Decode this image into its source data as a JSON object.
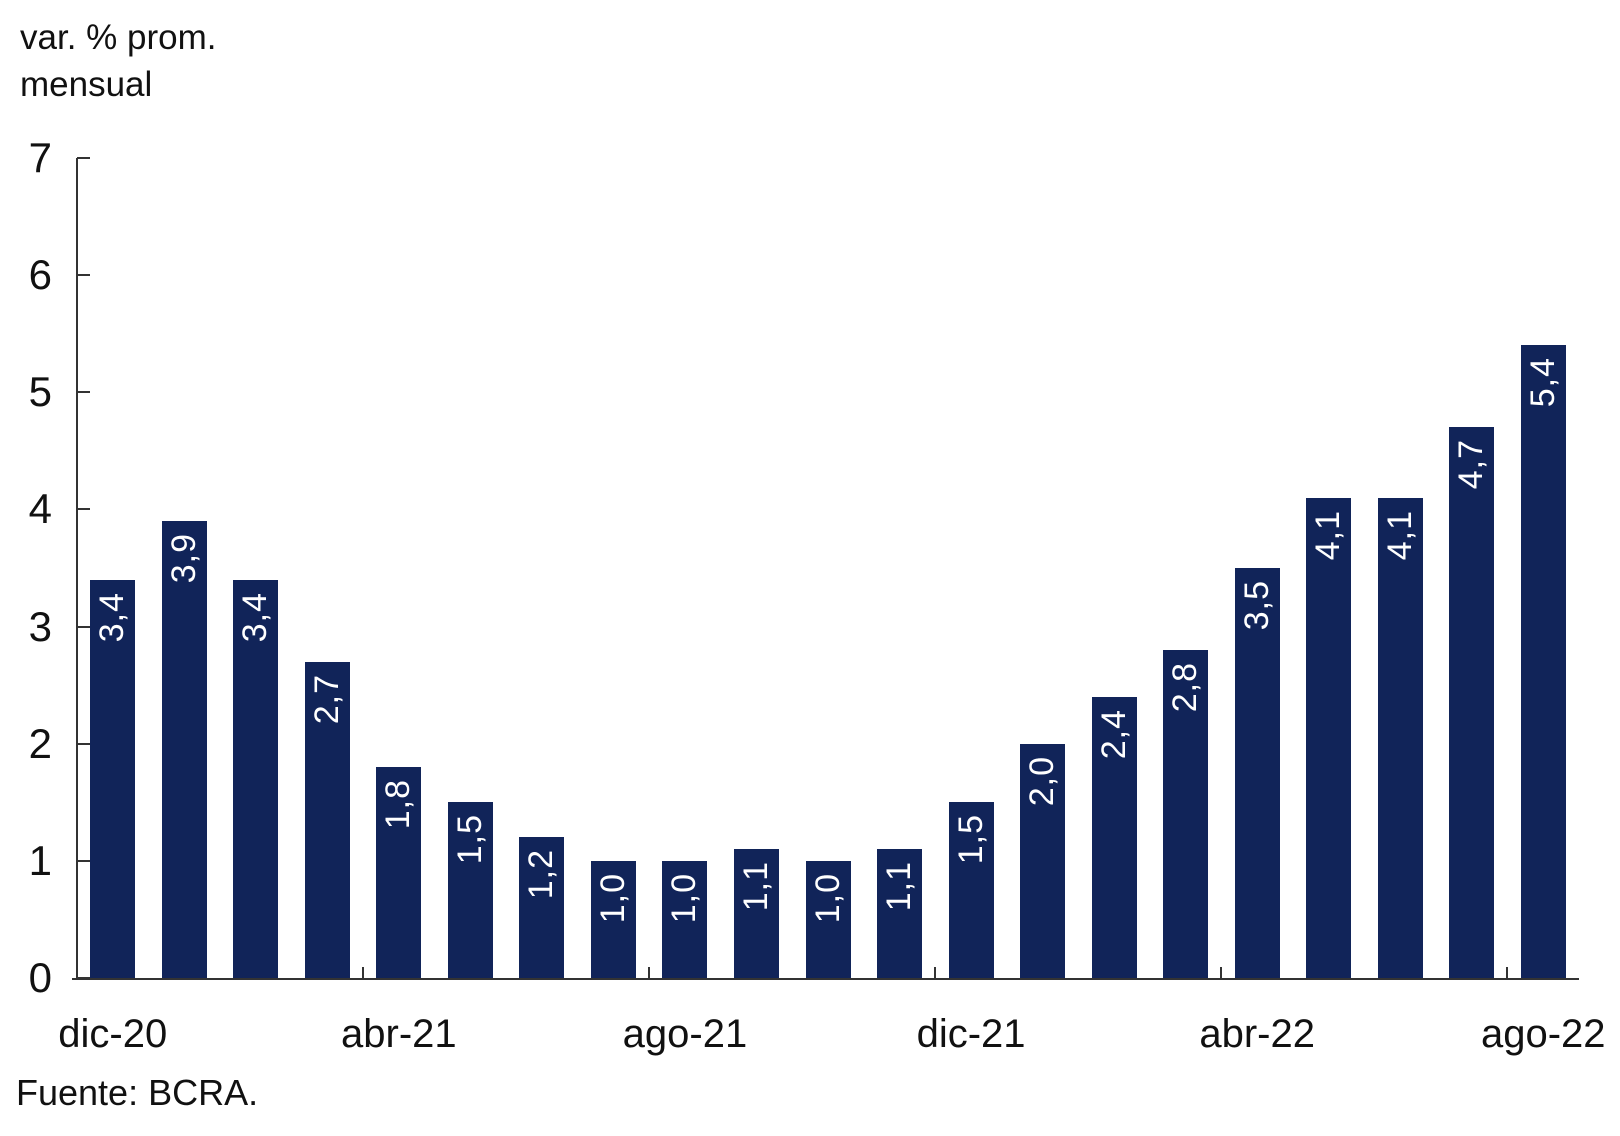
{
  "page": {
    "background": "#ffffff"
  },
  "chart_data": {
    "type": "bar",
    "title_lines": [
      "var. % prom.",
      "mensual"
    ],
    "source": "Fuente: BCRA.",
    "bar_color": "#112459",
    "value_label_color": "#ffffff",
    "axis_color": "#333333",
    "text_color": "#111111",
    "ylim": [
      0,
      7
    ],
    "y_ticks": [
      0,
      1,
      2,
      3,
      4,
      5,
      6,
      7
    ],
    "grid": "off",
    "legend": "none",
    "bars": [
      {
        "label": "3,4",
        "value": 3.4
      },
      {
        "label": "3,9",
        "value": 3.9
      },
      {
        "label": "3,4",
        "value": 3.4
      },
      {
        "label": "2,7",
        "value": 2.7
      },
      {
        "label": "1,8",
        "value": 1.8
      },
      {
        "label": "1,5",
        "value": 1.5
      },
      {
        "label": "1,2",
        "value": 1.2
      },
      {
        "label": "1,0",
        "value": 1.0
      },
      {
        "label": "1,0",
        "value": 1.0
      },
      {
        "label": "1,1",
        "value": 1.1
      },
      {
        "label": "1,0",
        "value": 1.0
      },
      {
        "label": "1,1",
        "value": 1.1
      },
      {
        "label": "1,5",
        "value": 1.5
      },
      {
        "label": "2,0",
        "value": 2.0
      },
      {
        "label": "2,4",
        "value": 2.4
      },
      {
        "label": "2,8",
        "value": 2.8
      },
      {
        "label": "3,5",
        "value": 3.5
      },
      {
        "label": "4,1",
        "value": 4.1
      },
      {
        "label": "4,1",
        "value": 4.1
      },
      {
        "label": "4,7",
        "value": 4.7
      },
      {
        "label": "5,4",
        "value": 5.4
      }
    ],
    "x_tick_labels": [
      {
        "label": "dic-20",
        "bar_index": 0
      },
      {
        "label": "abr-21",
        "bar_index": 4
      },
      {
        "label": "ago-21",
        "bar_index": 8
      },
      {
        "label": "dic-21",
        "bar_index": 12
      },
      {
        "label": "abr-22",
        "bar_index": 16
      },
      {
        "label": "ago-22",
        "bar_index": 20
      }
    ],
    "x_boundary_tick_interval": 4
  }
}
